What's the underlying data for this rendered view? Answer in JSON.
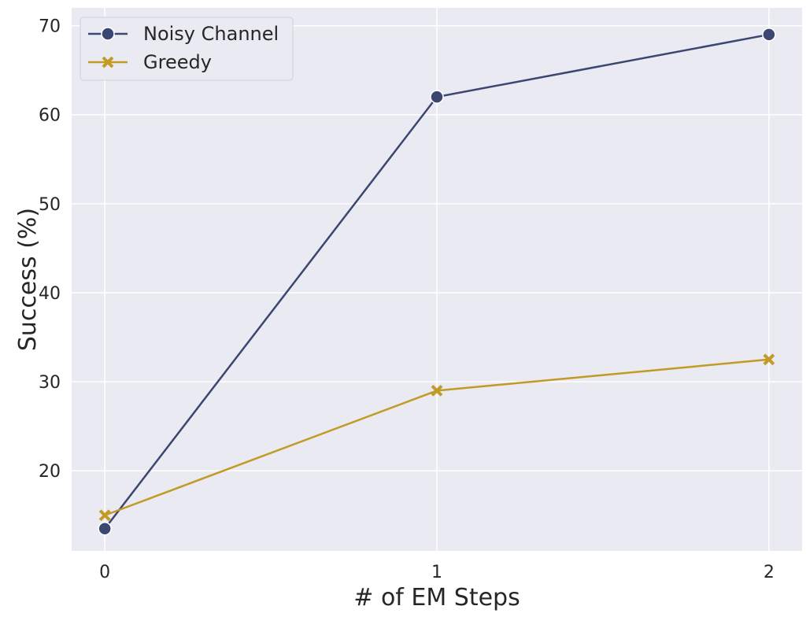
{
  "chart_data": {
    "type": "line",
    "xlabel": "# of EM Steps",
    "ylabel": "Success (%)",
    "x": [
      0,
      1,
      2
    ],
    "x_ticks": [
      0,
      1,
      2
    ],
    "y_ticks": [
      20,
      30,
      40,
      50,
      60,
      70
    ],
    "xlim": [
      -0.1,
      2.1
    ],
    "ylim": [
      11,
      72
    ],
    "grid": true,
    "legend_position": "top-left",
    "series": [
      {
        "name": "Noisy Channel",
        "values": [
          13.5,
          62,
          69
        ],
        "color": "#3b4671",
        "marker": "circle"
      },
      {
        "name": "Greedy",
        "values": [
          15,
          29,
          32.5
        ],
        "color": "#c29a26",
        "marker": "x"
      }
    ]
  }
}
